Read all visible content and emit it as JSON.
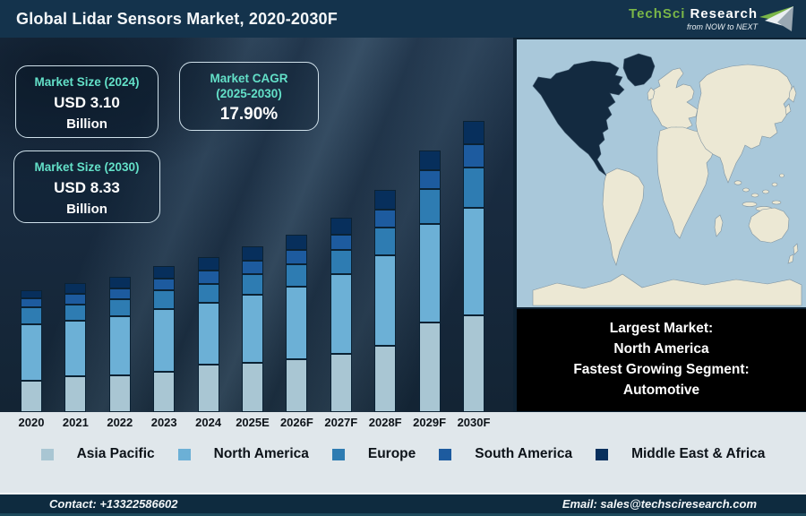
{
  "header": {
    "title": "Global Lidar Sensors Market, 2020-2030F",
    "logo": {
      "brand_primary": "TechSci",
      "brand_secondary": "Research",
      "tagline": "from NOW to NEXT"
    }
  },
  "info_boxes": {
    "size_2024": {
      "label": "Market Size (2024)",
      "value": "USD 3.10",
      "unit": "Billion"
    },
    "cagr": {
      "label": "Market CAGR",
      "label_line2": "(2025-2030)",
      "value": "17.90%"
    },
    "size_2030": {
      "label": "Market Size (2030)",
      "value": "USD 8.33",
      "unit": "Billion"
    }
  },
  "highlight_box": {
    "lines": [
      "Largest Market:",
      "North America",
      "Fastest Growing Segment:",
      "Automotive"
    ]
  },
  "chart_data": {
    "type": "bar",
    "stacked": true,
    "title": "Global Lidar Sensors Market, 2020-2030F",
    "categories": [
      "2020",
      "2021",
      "2022",
      "2023",
      "2024",
      "2025E",
      "2026F",
      "2027F",
      "2028F",
      "2029F",
      "2030F"
    ],
    "unit": "bar segment heights in px as drawn (no numeric axis shown in figure)",
    "series": [
      {
        "name": "Asia Pacific",
        "color": "#a9c6d3",
        "values": [
          35,
          40,
          41,
          45,
          53,
          55,
          59,
          65,
          74,
          100,
          108
        ]
      },
      {
        "name": "North America",
        "color": "#6cb0d6",
        "values": [
          63,
          62,
          66,
          70,
          69,
          76,
          81,
          89,
          101,
          110,
          120
        ]
      },
      {
        "name": "Europe",
        "color": "#2e7cb2",
        "values": [
          19,
          18,
          19,
          21,
          21,
          23,
          25,
          27,
          31,
          39,
          45
        ]
      },
      {
        "name": "South America",
        "color": "#1d5b9f",
        "values": [
          10,
          12,
          12,
          13,
          15,
          15,
          16,
          17,
          20,
          21,
          26
        ]
      },
      {
        "name": "Middle East & Africa",
        "color": "#072f5c",
        "values": [
          9,
          12,
          13,
          14,
          15,
          16,
          17,
          19,
          22,
          22,
          26
        ]
      }
    ],
    "stated_values": {
      "market_size_2024_usd_billion": 3.1,
      "market_size_2030_usd_billion": 8.33,
      "cagr_2025_2030_percent": 17.9
    },
    "legend_position": "bottom",
    "axis_shown": false
  },
  "footer": {
    "contact": "Contact: +13322586602",
    "email": "Email: sales@techsciresearch.com"
  },
  "colors": {
    "header_bg": "#14334c",
    "chart_bg": "#17293d",
    "accent_teal": "#63e0c8",
    "logo_green": "#7ab648",
    "lower_bg": "#e0e7eb",
    "footer_bg": "#0e2b3f",
    "map_ocean": "#a9c8da",
    "map_land": "#ece8d4",
    "map_highlight": "#132a40",
    "highlight_box_bg": "#000000"
  }
}
